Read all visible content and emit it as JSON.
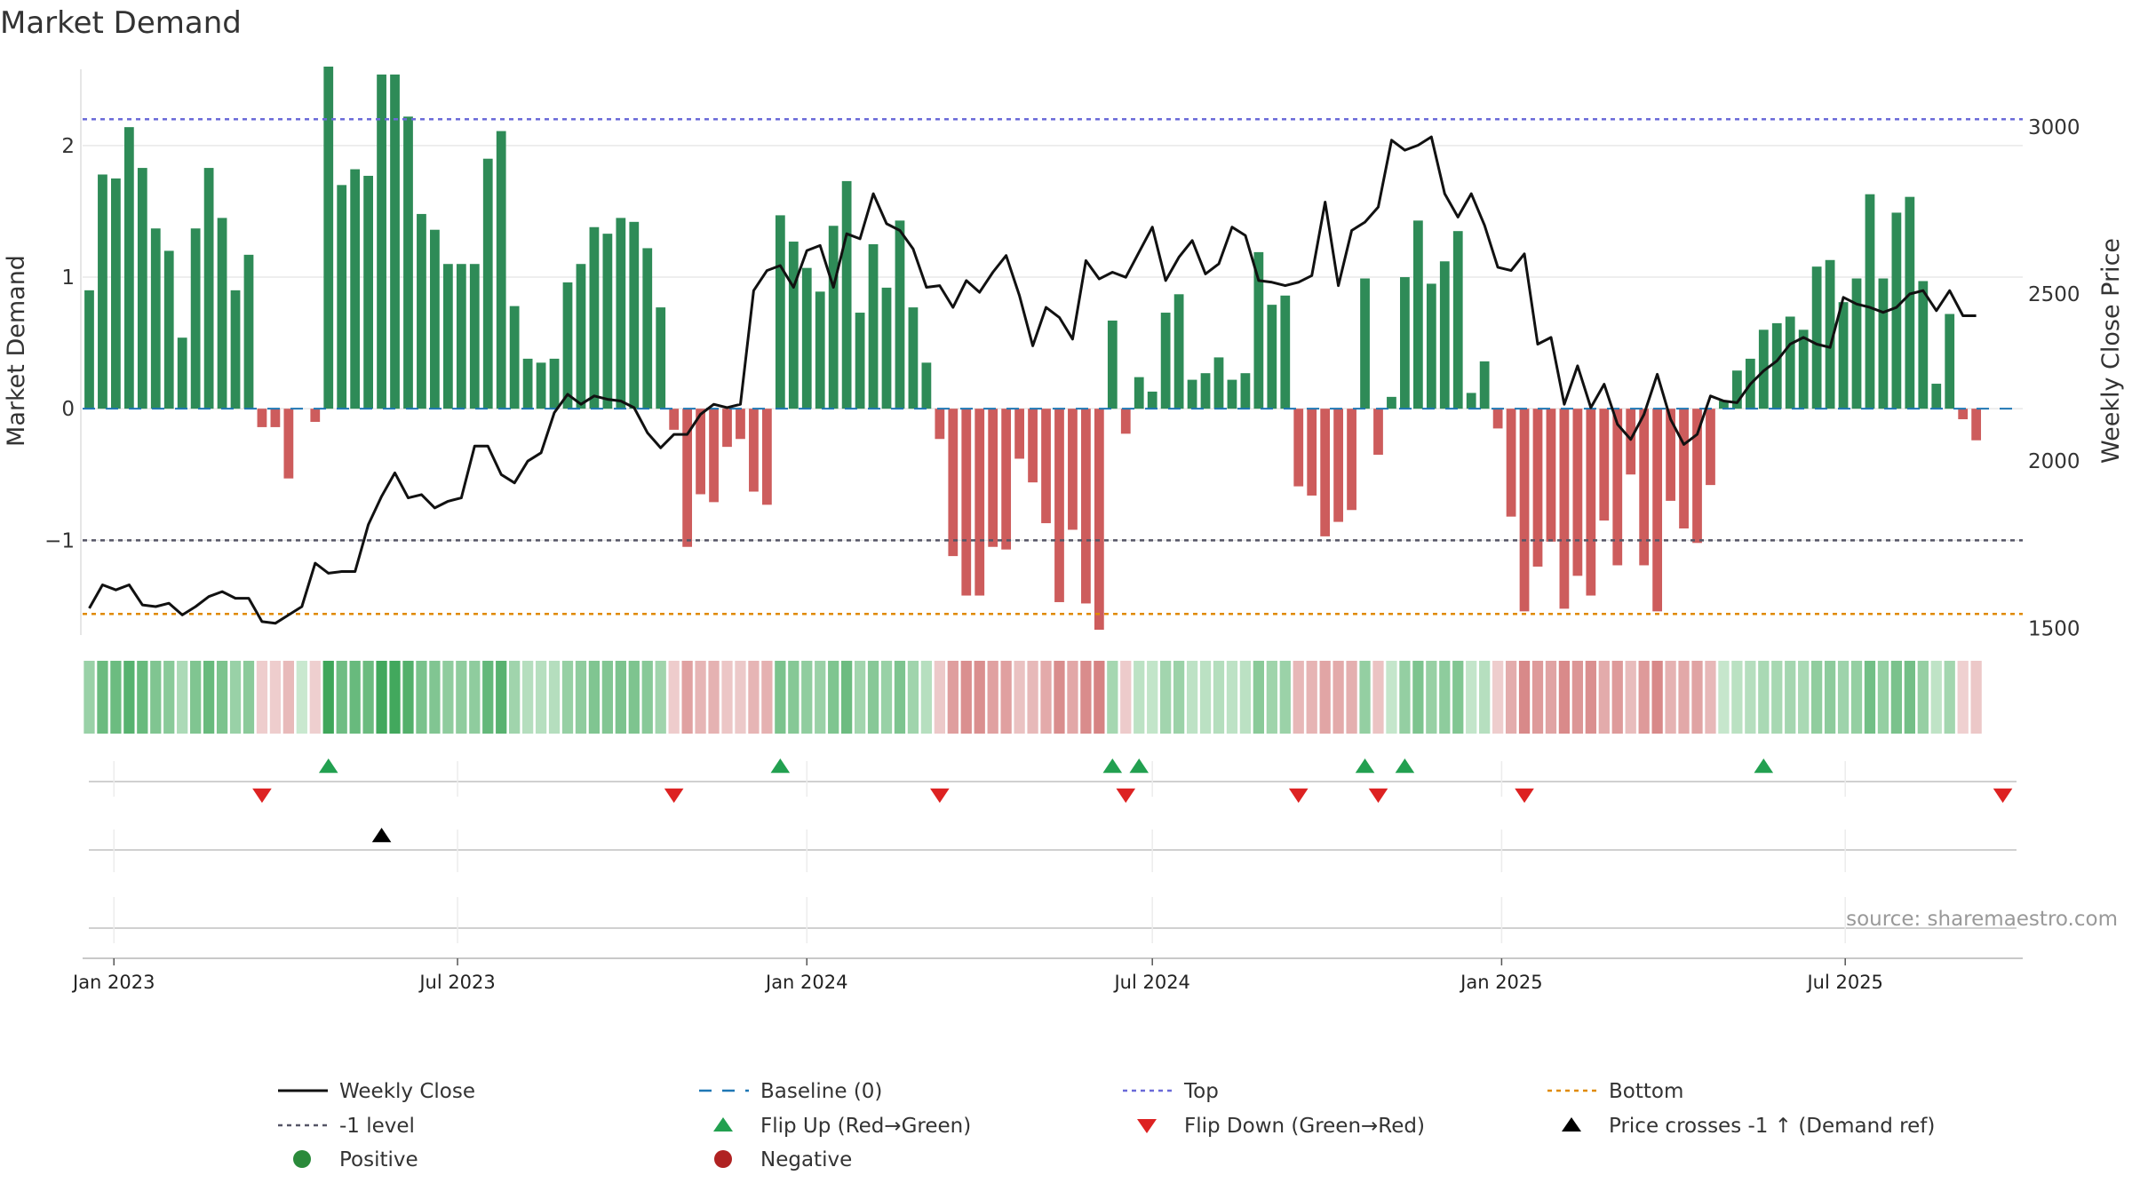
{
  "chart_data": {
    "type": "bar",
    "title": "Market Demand",
    "ylabel_left": "Market Demand",
    "ylabel_right": "Weekly Close Price",
    "source_text": "source: sharemaestro.com",
    "x_start_date": "2022-12-19",
    "week_count": 146,
    "ylim_left": [
      -1.72,
      2.6
    ],
    "ylim_right": [
      1480,
      3180
    ],
    "y_ticks_left": [
      {
        "v": 2,
        "label": "2"
      },
      {
        "v": 1,
        "label": "1"
      },
      {
        "v": 0,
        "label": "0"
      },
      {
        "v": -1,
        "label": "−1"
      }
    ],
    "y_ticks_right": [
      {
        "v": 3000,
        "label": "3000"
      },
      {
        "v": 2500,
        "label": "2500"
      },
      {
        "v": 2000,
        "label": "2000"
      },
      {
        "v": 1500,
        "label": "1500"
      }
    ],
    "x_ticks": [
      {
        "date": "2023-01-01",
        "label": "Jan 2023"
      },
      {
        "date": "2023-07-01",
        "label": "Jul 2023"
      },
      {
        "date": "2024-01-01",
        "label": "Jan 2024"
      },
      {
        "date": "2024-07-01",
        "label": "Jul 2024"
      },
      {
        "date": "2025-01-01",
        "label": "Jan 2025"
      },
      {
        "date": "2025-07-01",
        "label": "Jul 2025"
      }
    ],
    "reference_lines": {
      "top": 2.2,
      "bottom": -1.56,
      "minus_one": -1.0,
      "baseline": 0.0
    },
    "demand": [
      0.9,
      1.78,
      1.75,
      2.14,
      1.83,
      1.37,
      1.2,
      0.54,
      1.37,
      1.83,
      1.45,
      0.9,
      1.17,
      -0.14,
      -0.14,
      -0.53,
      0,
      -0.1,
      2.6,
      1.7,
      1.82,
      1.77,
      2.54,
      2.54,
      2.22,
      1.48,
      1.36,
      1.1,
      1.1,
      1.1,
      1.9,
      2.11,
      0.78,
      0.38,
      0.35,
      0.38,
      0.96,
      1.1,
      1.38,
      1.33,
      1.45,
      1.42,
      1.22,
      0.77,
      -0.16,
      -1.05,
      -0.65,
      -0.71,
      -0.29,
      -0.23,
      -0.63,
      -0.73,
      1.47,
      1.27,
      1.07,
      0.89,
      1.39,
      1.73,
      0.73,
      1.25,
      0.92,
      1.43,
      0.77,
      0.35,
      -0.23,
      -1.12,
      -1.42,
      -1.42,
      -1.05,
      -1.07,
      -0.38,
      -0.56,
      -0.87,
      -1.47,
      -0.92,
      -1.48,
      -1.68,
      0.67,
      -0.19,
      0.24,
      0.13,
      0.73,
      0.87,
      0.22,
      0.27,
      0.39,
      0.22,
      0.27,
      1.19,
      0.79,
      0.86,
      -0.59,
      -0.66,
      -0.97,
      -0.86,
      -0.77,
      0.99,
      -0.35,
      0.09,
      1.0,
      1.43,
      0.95,
      1.12,
      1.35,
      0.12,
      0.36,
      -0.15,
      -0.82,
      -1.54,
      -1.2,
      -1.01,
      -1.52,
      -1.27,
      -1.42,
      -0.85,
      -1.19,
      -0.5,
      -1.19,
      -1.54,
      -0.7,
      -0.91,
      -1.02,
      -0.58,
      0.06,
      0.29,
      0.38,
      0.6,
      0.65,
      0.7,
      0.6,
      1.08,
      1.13,
      0.81,
      0.99,
      1.63,
      0.99,
      1.49,
      1.61,
      0.97,
      0.19,
      0.72,
      -0.08,
      -0.24
    ],
    "weekly_close": [
      1560,
      1630,
      1615,
      1630,
      1570,
      1565,
      1575,
      1540,
      1565,
      1595,
      1610,
      1590,
      1590,
      1520,
      1515,
      1540,
      1565,
      1695,
      1665,
      1670,
      1670,
      1810,
      1895,
      1965,
      1890,
      1900,
      1860,
      1880,
      1890,
      2045,
      2045,
      1960,
      1935,
      2000,
      2025,
      2145,
      2200,
      2170,
      2195,
      2185,
      2180,
      2160,
      2085,
      2040,
      2080,
      2080,
      2140,
      2170,
      2160,
      2170,
      2510,
      2570,
      2585,
      2520,
      2630,
      2645,
      2520,
      2680,
      2665,
      2800,
      2710,
      2690,
      2635,
      2520,
      2525,
      2460,
      2540,
      2505,
      2565,
      2615,
      2495,
      2345,
      2460,
      2430,
      2365,
      2600,
      2545,
      2565,
      2550,
      2625,
      2700,
      2540,
      2610,
      2660,
      2560,
      2590,
      2700,
      2675,
      2540,
      2535,
      2525,
      2535,
      2555,
      2775,
      2525,
      2690,
      2715,
      2760,
      2960,
      2930,
      2945,
      2970,
      2800,
      2730,
      2800,
      2705,
      2580,
      2570,
      2620,
      2350,
      2370,
      2170,
      2285,
      2160,
      2230,
      2110,
      2065,
      2140,
      2260,
      2125,
      2050,
      2080,
      2195,
      2180,
      2175,
      2230,
      2270,
      2300,
      2350,
      2370,
      2350,
      2340,
      2490,
      2470,
      2460,
      2445,
      2460,
      2500,
      2510,
      2450,
      2510,
      2435,
      2435
    ],
    "legend": [
      {
        "key": "weekly_close",
        "label": "Weekly Close",
        "color": "#111111",
        "style": "solid"
      },
      {
        "key": "baseline",
        "label": "Baseline (0)",
        "color": "#1f77b4",
        "style": "dashed"
      },
      {
        "key": "top",
        "label": "Top",
        "color": "#6a6ad8",
        "style": "dotted"
      },
      {
        "key": "bottom",
        "label": "Bottom",
        "color": "#e08a00",
        "style": "dotted"
      },
      {
        "key": "minus_one",
        "label": "-1 level",
        "color": "#555566",
        "style": "dotted"
      },
      {
        "key": "flip_up",
        "label": "Flip Up (Red→Green)",
        "color": "#22a050",
        "style": "triangle-up"
      },
      {
        "key": "flip_down",
        "label": "Flip Down (Green→Red)",
        "color": "#dd2222",
        "style": "triangle-down"
      },
      {
        "key": "price_cross",
        "label": "Price crosses -1 ↑ (Demand ref)",
        "color": "#000000",
        "style": "triangle-up"
      },
      {
        "key": "positive",
        "label": "Positive",
        "color": "#2a8a3a",
        "style": "circle"
      },
      {
        "key": "negative",
        "label": "Negative",
        "color": "#b02222",
        "style": "circle"
      }
    ],
    "flip_up_weeks": [
      18,
      52,
      77,
      79,
      96,
      99,
      126
    ],
    "flip_down_weeks": [
      13,
      44,
      64,
      78,
      91,
      97,
      108,
      144
    ],
    "price_cross_weeks": [
      22
    ],
    "colors": {
      "bar_positive": "#2e8b57",
      "bar_negative": "#cd5c5c",
      "band_positive_strong": "#3fa65a",
      "band_positive_weak": "#c9e8cf",
      "band_negative_strong": "#c85656",
      "band_negative_weak": "#f0d4d4",
      "price_line": "#111111",
      "top_line": "#6a6ad8",
      "bottom_line": "#e08a00",
      "minus_one_line": "#555566",
      "baseline": "#1f77b4"
    }
  }
}
